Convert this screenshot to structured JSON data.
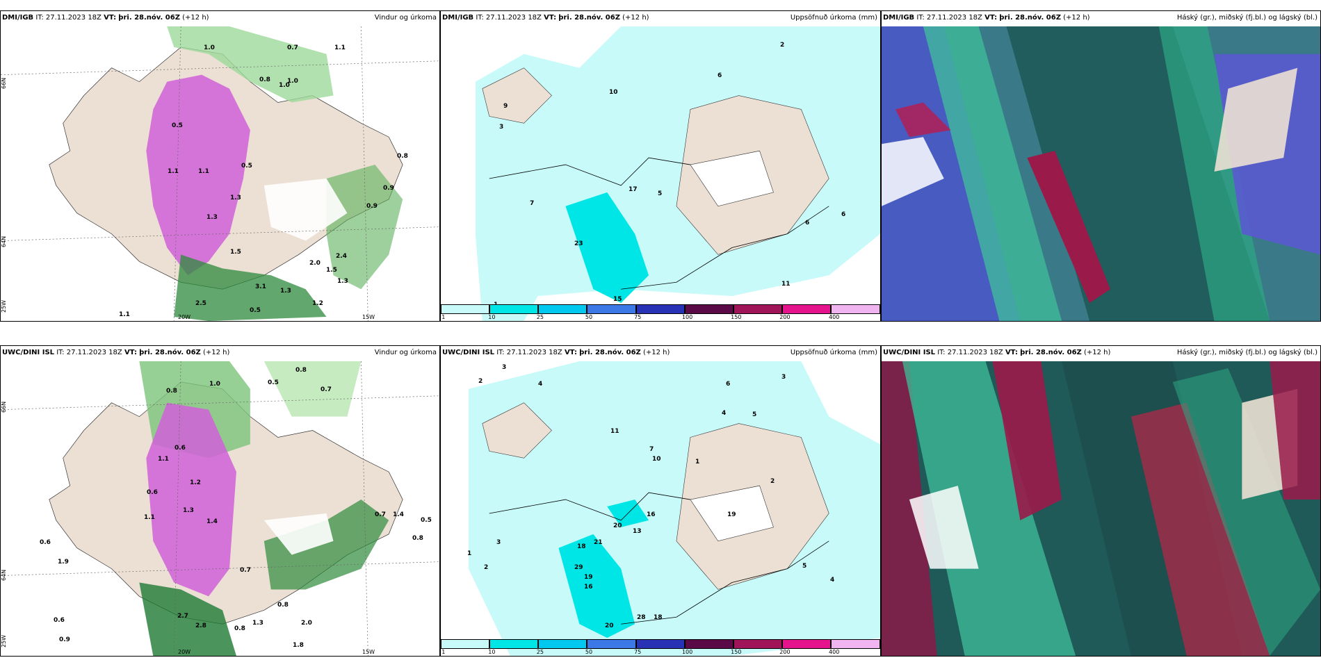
{
  "panels": [
    {
      "model": "DMI/IGB",
      "it": "IT: 27.11.2023 18Z",
      "vt_label": "VT:",
      "vt": "þri. 28.nóv. 06Z",
      "lead": "(+12 h)",
      "title": "Vindur og úrkoma"
    },
    {
      "model": "DMI/IGB",
      "it": "IT: 27.11.2023 18Z",
      "vt_label": "VT:",
      "vt": "þri. 28.nóv. 06Z",
      "lead": "(+12 h)",
      "title": "Uppsöfnuð úrkoma (mm)"
    },
    {
      "model": "DMI/IGB",
      "it": "IT: 27.11.2023 18Z",
      "vt_label": "VT:",
      "vt": "þri. 28.nóv. 06Z",
      "lead": "(+12 h)",
      "title": "Háský (gr.), miðský (fj.bl.) og lágský (bl.)"
    },
    {
      "model": "UWC/DINI ISL",
      "it": "IT: 27.11.2023 18Z",
      "vt_label": "VT:",
      "vt": "þri. 28.nóv. 06Z",
      "lead": "(+12 h)",
      "title": "Vindur og úrkoma"
    },
    {
      "model": "UWC/DINI ISL",
      "it": "IT: 27.11.2023 18Z",
      "vt_label": "VT:",
      "vt": "þri. 28.nóv. 06Z",
      "lead": "(+12 h)",
      "title": "Uppsöfnuð úrkoma (mm)"
    },
    {
      "model": "UWC/DINI ISL",
      "it": "IT: 27.11.2023 18Z",
      "vt_label": "VT:",
      "vt": "þri. 28.nóv. 06Z",
      "lead": "(+12 h)",
      "title": "Háský (gr.), miðský (fj.bl.) og lágský (bl.)"
    }
  ],
  "axes": {
    "lat66": "66N",
    "lat64": "64N",
    "lon20": "20W",
    "lon15": "15W",
    "lon25": "25W"
  },
  "colorbar": {
    "ticks": [
      "1",
      "10",
      "25",
      "50",
      "75",
      "100",
      "150",
      "200",
      "400"
    ],
    "colors": [
      "#c8fafa",
      "#00e6e6",
      "#00c8ee",
      "#3c78e6",
      "#2832b4",
      "#5a0a46",
      "#a0145a",
      "#e6148c",
      "#f0b4f0"
    ]
  },
  "wind_labels_top": [
    "1.0",
    "0.7",
    "1.1",
    "0.8",
    "1.0",
    "1.0",
    "0.5",
    "1.1",
    "1.3",
    "1.3",
    "1.5",
    "0.5",
    "0.8",
    "0.9",
    "0.9",
    "2.5",
    "3.1",
    "2.4",
    "1.2",
    "1.1",
    "1.5",
    "1.3",
    "1.3",
    "2.0",
    "0.5",
    "1.1"
  ],
  "wind_labels_bottom": [
    "0.8",
    "1.0",
    "0.5",
    "0.8",
    "0.7",
    "0.6",
    "1.1",
    "1.3",
    "1.4",
    "1.2",
    "0.6",
    "1.1",
    "0.7",
    "0.6",
    "1.9",
    "0.6",
    "0.9",
    "2.7",
    "2.8",
    "0.8",
    "1.3",
    "0.8",
    "2.0",
    "1.8",
    "0.7",
    "1.4",
    "0.8",
    "0.5"
  ],
  "precip_labels_top": [
    "2",
    "6",
    "10",
    "9",
    "3",
    "7",
    "17",
    "23",
    "5",
    "6",
    "6",
    "11",
    "1",
    "15"
  ],
  "precip_labels_bottom": [
    "3",
    "2",
    "4",
    "6",
    "3",
    "5",
    "4",
    "11",
    "7",
    "10",
    "2",
    "1",
    "16",
    "19",
    "20",
    "13",
    "21",
    "18",
    "29",
    "19",
    "16",
    "20",
    "28",
    "18",
    "5",
    "4",
    "1",
    "2",
    "3"
  ]
}
